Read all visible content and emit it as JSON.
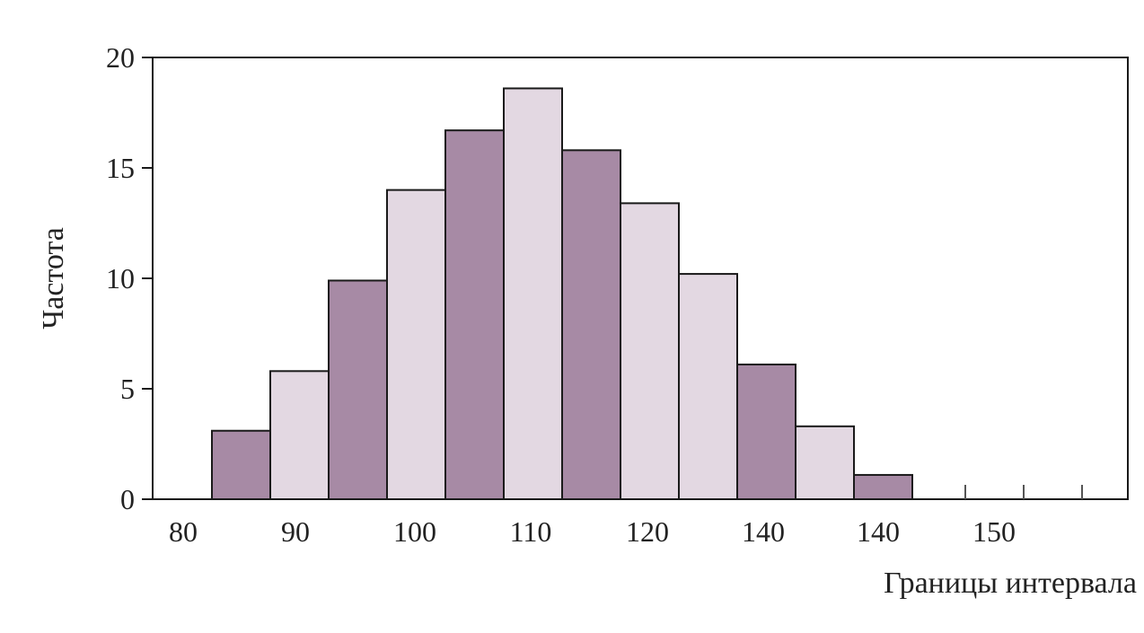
{
  "chart_data": {
    "type": "bar",
    "title": "",
    "xlabel": "Границы интервала",
    "ylabel": "Частота",
    "ylim": [
      0,
      20
    ],
    "y_ticks": [
      "0",
      "5",
      "10",
      "15",
      "20"
    ],
    "x_tick_labels": [
      "80",
      "90",
      "100",
      "110",
      "120",
      "140",
      "140",
      "150"
    ],
    "bars": [
      {
        "value": 3.1,
        "color": "#a78aa5"
      },
      {
        "value": 5.8,
        "color": "#e3d8e2"
      },
      {
        "value": 9.9,
        "color": "#a78aa5"
      },
      {
        "value": 14.0,
        "color": "#e3d8e2"
      },
      {
        "value": 16.7,
        "color": "#a78aa5"
      },
      {
        "value": 18.6,
        "color": "#e3d8e2"
      },
      {
        "value": 15.8,
        "color": "#a78aa5"
      },
      {
        "value": 13.4,
        "color": "#e3d8e2"
      },
      {
        "value": 10.2,
        "color": "#e3d8e2"
      },
      {
        "value": 6.1,
        "color": "#a78aa5"
      },
      {
        "value": 3.3,
        "color": "#e3d8e2"
      },
      {
        "value": 1.1,
        "color": "#a78aa5"
      },
      {
        "value": 0,
        "color": "#a78aa5"
      },
      {
        "value": 0,
        "color": "#a78aa5"
      },
      {
        "value": 0,
        "color": "#a78aa5"
      }
    ],
    "grid": false,
    "legend": "none"
  }
}
